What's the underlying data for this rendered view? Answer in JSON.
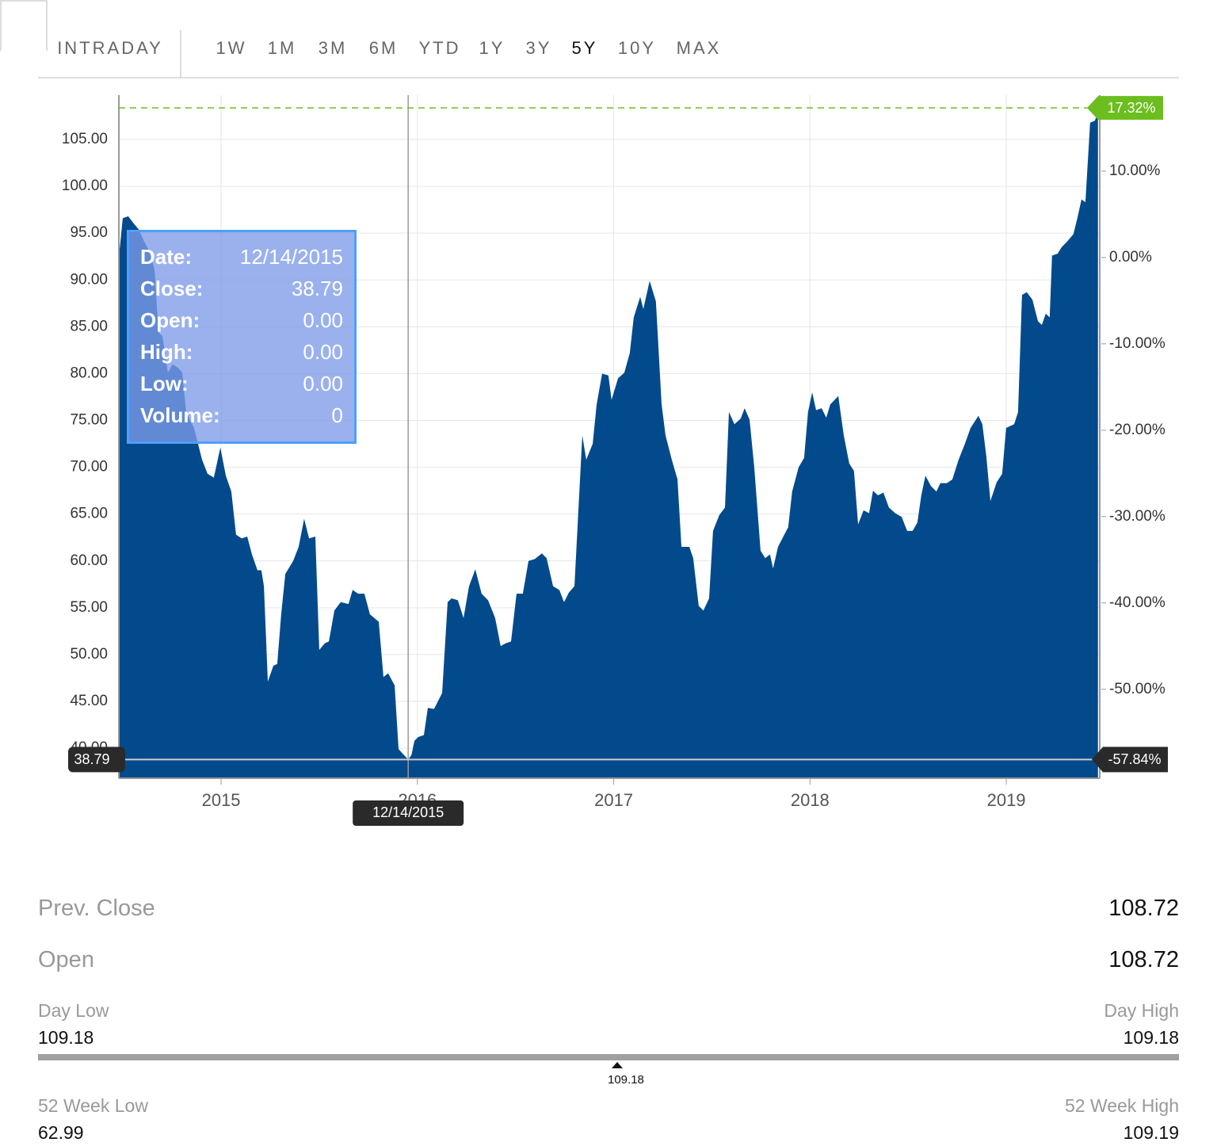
{
  "tabs": {
    "items": [
      "INTRADAY",
      "1W",
      "1M",
      "3M",
      "6M",
      "YTD",
      "1Y",
      "3Y",
      "5Y",
      "10Y",
      "MAX"
    ],
    "active_index": 8
  },
  "chart_data": {
    "type": "area",
    "color": "#034a8c",
    "grid": true,
    "x": [
      2014.479,
      2014.499,
      2014.527,
      2014.552,
      2014.58,
      2014.608,
      2014.632,
      2014.661,
      2014.681,
      2014.701,
      2014.729,
      2014.753,
      2014.782,
      2014.802,
      2014.822,
      2014.862,
      2014.903,
      2014.931,
      2014.963,
      2014.996,
      2015.024,
      2015.052,
      2015.076,
      2015.105,
      2015.133,
      2015.157,
      2015.185,
      2015.205,
      2015.218,
      2015.238,
      2015.266,
      2015.286,
      2015.306,
      2015.327,
      2015.367,
      2015.395,
      2015.423,
      2015.448,
      2015.48,
      2015.5,
      2015.528,
      2015.549,
      2015.577,
      2015.609,
      2015.649,
      2015.67,
      2015.698,
      2015.73,
      2015.758,
      2015.803,
      2015.827,
      2015.851,
      2015.884,
      2015.904,
      2015.953,
      2015.97,
      2015.985,
      2016.005,
      2016.033,
      2016.053,
      2016.085,
      2016.126,
      2016.154,
      2016.174,
      2016.206,
      2016.235,
      2016.263,
      2016.295,
      2016.327,
      2016.36,
      2016.396,
      2016.424,
      2016.449,
      2016.477,
      2016.505,
      2016.537,
      2016.566,
      2016.598,
      2016.634,
      2016.658,
      2016.691,
      2016.723,
      2016.747,
      2016.771,
      2016.8,
      2016.84,
      2016.86,
      2016.893,
      2016.913,
      2016.941,
      2016.973,
      2016.989,
      2017.022,
      2017.054,
      2017.082,
      2017.102,
      2017.135,
      2017.151,
      2017.183,
      2017.215,
      2017.244,
      2017.264,
      2017.296,
      2017.325,
      2017.345,
      2017.385,
      2017.405,
      2017.433,
      2017.457,
      2017.486,
      2017.506,
      2017.538,
      2017.567,
      2017.587,
      2017.615,
      2017.647,
      2017.667,
      2017.692,
      2017.716,
      2017.748,
      2017.772,
      2017.796,
      2017.812,
      2017.837,
      2017.869,
      2017.889,
      2017.909,
      2017.942,
      2017.97,
      2017.99,
      2018.011,
      2018.031,
      2018.059,
      2018.083,
      2018.103,
      2018.144,
      2018.172,
      2018.2,
      2018.224,
      2018.245,
      2018.273,
      2018.301,
      2018.321,
      2018.346,
      2018.374,
      2018.402,
      2018.434,
      2018.467,
      2018.495,
      2018.523,
      2018.547,
      2018.567,
      2018.588,
      2018.616,
      2018.644,
      2018.664,
      2018.697,
      2018.725,
      2018.757,
      2018.789,
      2018.818,
      2018.858,
      2018.878,
      2018.898,
      2018.919,
      2018.951,
      2018.979,
      2018.999,
      2019.04,
      2019.06,
      2019.08,
      2019.104,
      2019.133,
      2019.161,
      2019.181,
      2019.201,
      2019.221,
      2019.233,
      2019.261,
      2019.282,
      2019.31,
      2019.342,
      2019.362,
      2019.383,
      2019.403,
      2019.427,
      2019.451,
      2019.467
    ],
    "values": [
      92.4,
      96.6,
      96.8,
      96.1,
      95.4,
      94.1,
      93.2,
      91.1,
      84.4,
      84.0,
      80.1,
      81.0,
      80.6,
      80.1,
      75.9,
      74.2,
      70.8,
      69.3,
      68.9,
      72.1,
      69.1,
      67.4,
      62.8,
      62.4,
      62.6,
      60.7,
      59.0,
      59.0,
      57.3,
      47.1,
      48.8,
      49.0,
      54.3,
      58.6,
      60.0,
      61.5,
      64.5,
      62.4,
      62.6,
      50.5,
      51.2,
      51.4,
      54.7,
      55.6,
      55.4,
      56.9,
      56.5,
      56.5,
      54.3,
      53.5,
      47.6,
      48.0,
      46.7,
      39.9,
      38.79,
      39.3,
      40.8,
      41.2,
      41.4,
      44.3,
      44.2,
      45.9,
      55.6,
      56.0,
      55.8,
      53.9,
      57.3,
      59.1,
      56.5,
      55.8,
      53.9,
      50.9,
      51.2,
      51.4,
      56.5,
      56.5,
      60.0,
      60.2,
      60.8,
      60.3,
      57.3,
      56.9,
      55.6,
      56.6,
      57.3,
      73.4,
      70.8,
      72.5,
      76.7,
      80.0,
      79.8,
      77.2,
      79.5,
      80.1,
      82.2,
      86.0,
      88.2,
      86.9,
      89.9,
      87.7,
      76.7,
      73.4,
      70.8,
      68.7,
      61.5,
      61.5,
      60.3,
      55.2,
      54.7,
      56.0,
      63.2,
      64.9,
      65.7,
      75.9,
      74.6,
      75.2,
      76.3,
      75.1,
      70.0,
      61.1,
      60.3,
      60.7,
      59.2,
      61.5,
      62.8,
      63.6,
      67.4,
      70.0,
      71.0,
      75.9,
      78.0,
      76.1,
      76.3,
      75.3,
      76.7,
      77.6,
      73.4,
      70.4,
      69.6,
      63.9,
      65.4,
      65.1,
      67.5,
      67.0,
      67.3,
      65.7,
      65.1,
      64.7,
      63.2,
      63.2,
      64.1,
      67.0,
      69.1,
      68.0,
      67.4,
      68.3,
      68.3,
      68.7,
      70.8,
      72.5,
      74.2,
      75.5,
      74.6,
      71.2,
      66.4,
      68.4,
      69.3,
      74.2,
      74.6,
      75.9,
      88.4,
      88.7,
      87.9,
      85.6,
      85.2,
      86.4,
      86.0,
      92.6,
      92.8,
      93.5,
      94.1,
      94.9,
      96.6,
      98.6,
      98.3,
      106.8,
      107.0,
      107.9
    ],
    "xlim": [
      2014.479,
      2019.476
    ],
    "xticks": [
      2015,
      2016,
      2017,
      2018,
      2019
    ],
    "ylim": [
      36.79,
      109.74
    ],
    "yticks": [
      {
        "value": 40,
        "label": "40.00"
      },
      {
        "value": 45,
        "label": "45.00"
      },
      {
        "value": 50,
        "label": "50.00"
      },
      {
        "value": 55,
        "label": "55.00"
      },
      {
        "value": 60,
        "label": "60.00"
      },
      {
        "value": 65,
        "label": "65.00"
      },
      {
        "value": 70,
        "label": "70.00"
      },
      {
        "value": 75,
        "label": "75.00"
      },
      {
        "value": 80,
        "label": "80.00"
      },
      {
        "value": 85,
        "label": "85.00"
      },
      {
        "value": 90,
        "label": "90.00"
      },
      {
        "value": 95,
        "label": "95.00"
      },
      {
        "value": 100,
        "label": "100.00"
      },
      {
        "value": 105,
        "label": "105.00"
      }
    ],
    "y2lim": [
      -60.3,
      18.8
    ],
    "y2ticks": [
      {
        "value": -50,
        "label": "-50.00%"
      },
      {
        "value": -40,
        "label": "-40.00%"
      },
      {
        "value": -30,
        "label": "-30.00%"
      },
      {
        "value": -20,
        "label": "-20.00%"
      },
      {
        "value": -10,
        "label": "-10.00%"
      },
      {
        "value": 0,
        "label": "0.00%"
      },
      {
        "value": 10,
        "label": "10.00%"
      }
    ],
    "current": {
      "value": 17.32,
      "label": "17.32%",
      "color": "#6cbd1e"
    },
    "crosshair": {
      "x": 2015.953,
      "label": "12/14/2015",
      "y": 38.79,
      "y2": {
        "value": -57.84,
        "label": "-57.84%"
      }
    }
  },
  "tooltip": {
    "rows": [
      {
        "label": "Date:",
        "value": "12/14/2015"
      },
      {
        "label": "Close:",
        "value": "38.79"
      },
      {
        "label": "Open:",
        "value": "0.00"
      },
      {
        "label": "High:",
        "value": "0.00"
      },
      {
        "label": "Low:",
        "value": "0.00"
      },
      {
        "label": "Volume:",
        "value": "0"
      }
    ]
  },
  "stats": {
    "prev_close": {
      "label": "Prev. Close",
      "value": "108.72"
    },
    "open": {
      "label": "Open",
      "value": "108.72"
    },
    "day_low": {
      "label": "Day Low",
      "value": "109.18"
    },
    "day_high": {
      "label": "Day High",
      "value": "109.18"
    },
    "day_current": "109.18",
    "week52_low": {
      "label": "52 Week Low",
      "value": "62.99"
    },
    "week52_high": {
      "label": "52 Week High",
      "value": "109.19"
    }
  }
}
